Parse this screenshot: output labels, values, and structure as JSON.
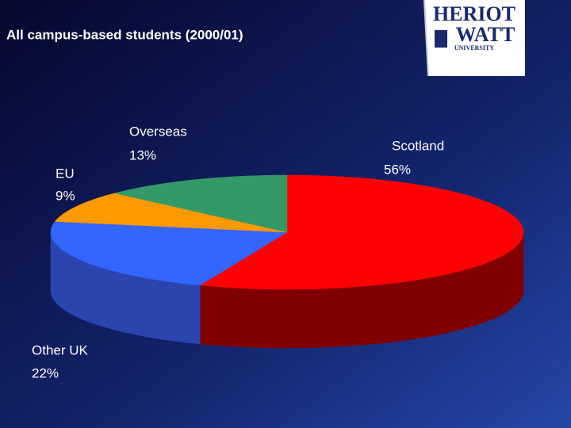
{
  "chart_data": {
    "type": "pie",
    "title": "All campus-based students (2000/01)",
    "categories": [
      "Scotland",
      "Other UK",
      "EU",
      "Overseas"
    ],
    "values": [
      56,
      22,
      9,
      13
    ],
    "value_labels": [
      "56%",
      "22%",
      "9%",
      "13%"
    ],
    "colors": [
      "#ff0000",
      "#3366ff",
      "#ff9900",
      "#339966"
    ],
    "side_colors": [
      "#800000",
      "#2a45b0",
      "#b36b00",
      "#1f6640"
    ]
  },
  "logo": {
    "line1": "HERIOT",
    "line2": "WATT",
    "line3": "UNIVERSITY"
  }
}
